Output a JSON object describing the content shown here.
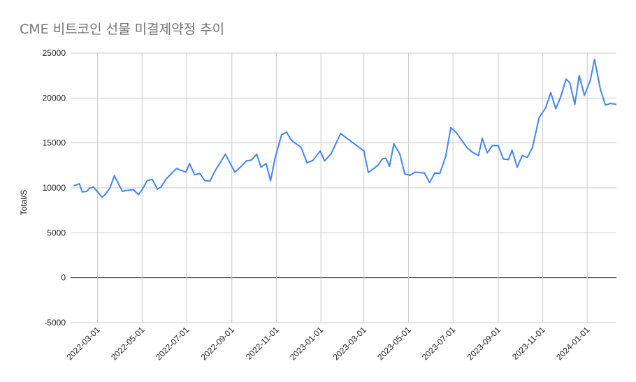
{
  "chart_data": {
    "type": "line",
    "title": "CME 비트코인 선물 미결제약정 추이",
    "xlabel": "",
    "ylabel": "Total/S",
    "ylim": [
      -5000,
      25000
    ],
    "yticks": [
      25000,
      20000,
      15000,
      10000,
      5000,
      0,
      -5000
    ],
    "xticks": [
      "2022-03-01",
      "2022-05-01",
      "2022-07-01",
      "2022-09-01",
      "2022-11-01",
      "2023-01-01",
      "2023-03-01",
      "2023-05-01",
      "2023-07-01",
      "2023-09-01",
      "2023-11-01",
      "2024-01-01"
    ],
    "grid": true,
    "line_color": "#4285f4",
    "series": [
      {
        "name": "",
        "x": [
          "2022-01-28",
          "2022-02-04",
          "2022-02-08",
          "2022-02-14",
          "2022-02-18",
          "2022-02-23",
          "2022-03-01",
          "2022-03-07",
          "2022-03-12",
          "2022-03-18",
          "2022-03-24",
          "2022-04-04",
          "2022-04-08",
          "2022-04-19",
          "2022-04-26",
          "2022-05-01",
          "2022-05-08",
          "2022-05-15",
          "2022-05-22",
          "2022-05-27",
          "2022-06-03",
          "2022-06-08",
          "2022-06-17",
          "2022-06-30",
          "2022-07-05",
          "2022-07-12",
          "2022-07-19",
          "2022-07-26",
          "2022-08-02",
          "2022-08-09",
          "2022-08-16",
          "2022-08-23",
          "2022-09-05",
          "2022-09-14",
          "2022-09-21",
          "2022-09-28",
          "2022-10-05",
          "2022-10-11",
          "2022-10-18",
          "2022-10-24",
          "2022-10-30",
          "2022-11-08",
          "2022-11-15",
          "2022-11-20",
          "2022-11-23",
          "2022-12-05",
          "2022-12-13",
          "2022-12-21",
          "2022-12-31",
          "2023-01-06",
          "2023-01-15",
          "2023-01-28",
          "2023-03-01",
          "2023-03-07",
          "2023-03-20",
          "2023-03-26",
          "2023-03-31",
          "2023-04-05",
          "2023-04-11",
          "2023-04-19",
          "2023-04-26",
          "2023-05-03",
          "2023-05-10",
          "2023-05-23",
          "2023-05-30",
          "2023-06-06",
          "2023-06-13",
          "2023-06-21",
          "2023-06-28",
          "2023-07-05",
          "2023-07-20",
          "2023-07-27",
          "2023-08-05",
          "2023-08-10",
          "2023-08-17",
          "2023-08-24",
          "2023-09-01",
          "2023-09-08",
          "2023-09-15",
          "2023-09-20",
          "2023-09-27",
          "2023-10-04",
          "2023-10-11",
          "2023-10-18",
          "2023-10-27",
          "2023-11-05",
          "2023-11-12",
          "2023-11-19",
          "2023-11-26",
          "2023-12-03",
          "2023-12-08",
          "2023-12-15",
          "2023-12-21",
          "2023-12-28",
          "2024-01-05",
          "2024-01-11",
          "2024-01-19",
          "2024-01-26",
          "2024-02-02",
          "2024-02-09"
        ],
        "values": [
          10250,
          10450,
          9550,
          9600,
          9950,
          10100,
          9550,
          8950,
          9300,
          10000,
          11350,
          9600,
          9700,
          9800,
          9250,
          9800,
          10800,
          10950,
          9850,
          10100,
          11000,
          11400,
          12150,
          11750,
          12700,
          11450,
          11600,
          10800,
          10750,
          11900,
          12800,
          13750,
          11750,
          12400,
          13000,
          13100,
          13750,
          12300,
          12700,
          10800,
          13250,
          15900,
          16200,
          15500,
          15200,
          14500,
          12800,
          13050,
          14100,
          13000,
          13800,
          16050,
          14100,
          11700,
          12500,
          13200,
          13300,
          12400,
          14900,
          13800,
          11550,
          11400,
          11750,
          11650,
          10600,
          11650,
          11600,
          13500,
          16700,
          16200,
          14500,
          14000,
          13600,
          15500,
          13900,
          14700,
          14700,
          13200,
          13150,
          14200,
          12300,
          13600,
          13400,
          14500,
          17800,
          18900,
          20600,
          18800,
          20200,
          22100,
          21700,
          19300,
          22500,
          20300,
          21900,
          24300,
          21000,
          19200,
          19400,
          19300
        ]
      }
    ]
  }
}
